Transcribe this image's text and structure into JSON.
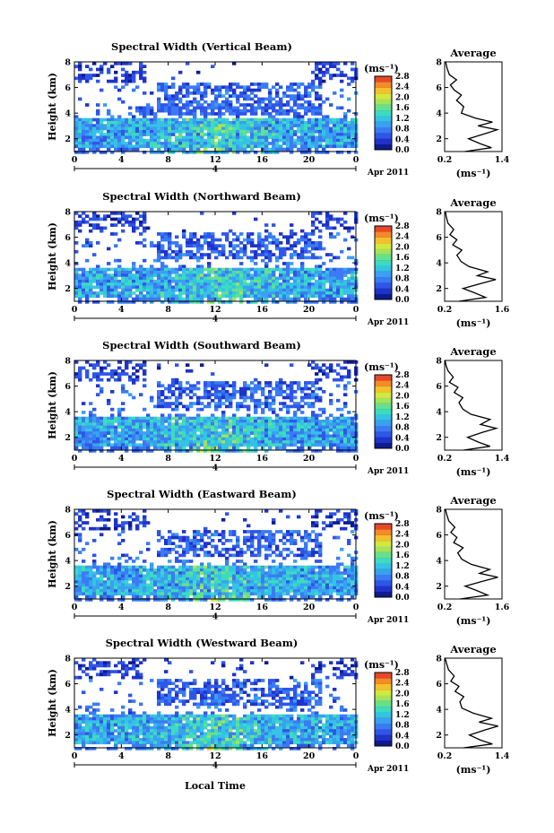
{
  "figure": {
    "x_axis_label": "Local Time",
    "colorbar_unit": "(ms⁻¹)",
    "average_title": "Average",
    "average_unit": "(ms⁻¹)",
    "date_day": "4",
    "date_month_year": "Apr 2011",
    "colormap": [
      "#0d1b8f",
      "#1f33c9",
      "#2e56e8",
      "#3a7bf3",
      "#3aa0f0",
      "#34c3e4",
      "#3ddbbf",
      "#67e08c",
      "#a2e45c",
      "#d8e63c",
      "#f3c12d",
      "#f38b27",
      "#e6482a"
    ]
  },
  "chart_data": [
    {
      "type": "heatmap",
      "title": "Spectral Width (Vertical Beam)",
      "ylabel": "Height (km)",
      "x_ticks": [
        "0",
        "4",
        "8",
        "12",
        "16",
        "20",
        "0"
      ],
      "y_ticks": [
        "2",
        "4",
        "6",
        "8"
      ],
      "xlim": [
        0,
        24
      ],
      "ylim": [
        1,
        8
      ],
      "colorbar_ticks": [
        "0.0",
        "0.4",
        "0.8",
        "1.2",
        "1.6",
        "2.0",
        "2.4",
        "2.8"
      ],
      "colorbar_range": [
        0,
        2.8
      ],
      "average_profile": {
        "x_ticks": [
          "0.2",
          "1.4"
        ],
        "xlim": [
          0.2,
          1.4
        ],
        "y_ticks": [
          "2",
          "4",
          "6",
          "8"
        ],
        "ylim": [
          1,
          8
        ],
        "points": [
          [
            0.62,
            1.0
          ],
          [
            1.18,
            1.3
          ],
          [
            0.95,
            1.6
          ],
          [
            0.7,
            2.0
          ],
          [
            1.05,
            2.4
          ],
          [
            1.3,
            2.7
          ],
          [
            0.9,
            3.0
          ],
          [
            1.2,
            3.3
          ],
          [
            0.85,
            3.6
          ],
          [
            0.55,
            4.0
          ],
          [
            0.6,
            4.5
          ],
          [
            0.45,
            5.0
          ],
          [
            0.55,
            5.4
          ],
          [
            0.4,
            5.8
          ],
          [
            0.32,
            6.2
          ],
          [
            0.45,
            6.6
          ],
          [
            0.3,
            7.0
          ],
          [
            0.25,
            7.5
          ],
          [
            0.22,
            8.0
          ]
        ]
      }
    },
    {
      "type": "heatmap",
      "title": "Spectral Width (Northward Beam)",
      "ylabel": "Height (km)",
      "x_ticks": [
        "0",
        "4",
        "8",
        "12",
        "16",
        "20",
        "0"
      ],
      "y_ticks": [
        "2",
        "4",
        "6",
        "8"
      ],
      "xlim": [
        0,
        24
      ],
      "ylim": [
        1,
        8
      ],
      "colorbar_ticks": [
        "0.0",
        "0.4",
        "0.8",
        "1.2",
        "1.6",
        "2.0",
        "2.4",
        "2.8"
      ],
      "colorbar_range": [
        0,
        2.8
      ],
      "average_profile": {
        "x_ticks": [
          "0.2",
          "1.6"
        ],
        "xlim": [
          0.2,
          1.6
        ],
        "y_ticks": [
          "2",
          "4",
          "6",
          "8"
        ],
        "ylim": [
          1,
          8
        ],
        "points": [
          [
            0.55,
            1.0
          ],
          [
            1.2,
            1.3
          ],
          [
            0.9,
            1.7
          ],
          [
            0.65,
            2.0
          ],
          [
            1.1,
            2.4
          ],
          [
            1.45,
            2.7
          ],
          [
            1.0,
            3.0
          ],
          [
            1.25,
            3.3
          ],
          [
            0.8,
            3.7
          ],
          [
            0.6,
            4.1
          ],
          [
            0.5,
            4.6
          ],
          [
            0.62,
            5.0
          ],
          [
            0.4,
            5.4
          ],
          [
            0.5,
            5.8
          ],
          [
            0.33,
            6.2
          ],
          [
            0.42,
            6.6
          ],
          [
            0.28,
            7.1
          ],
          [
            0.24,
            7.6
          ],
          [
            0.22,
            8.0
          ]
        ]
      }
    },
    {
      "type": "heatmap",
      "title": "Spectral Width (Southward Beam)",
      "ylabel": "Height (km)",
      "x_ticks": [
        "0",
        "4",
        "8",
        "12",
        "16",
        "20",
        "0"
      ],
      "y_ticks": [
        "2",
        "4",
        "6",
        "8"
      ],
      "xlim": [
        0,
        24
      ],
      "ylim": [
        1,
        8
      ],
      "colorbar_ticks": [
        "0.0",
        "0.4",
        "0.8",
        "1.2",
        "1.6",
        "2.0",
        "2.4",
        "2.8"
      ],
      "colorbar_range": [
        0,
        2.8
      ],
      "average_profile": {
        "x_ticks": [
          "0.2",
          "1.4"
        ],
        "xlim": [
          0.2,
          1.4
        ],
        "y_ticks": [
          "2",
          "4",
          "6",
          "8"
        ],
        "ylim": [
          1,
          8
        ],
        "points": [
          [
            0.6,
            1.0
          ],
          [
            1.15,
            1.3
          ],
          [
            0.92,
            1.6
          ],
          [
            0.68,
            2.0
          ],
          [
            1.0,
            2.4
          ],
          [
            1.28,
            2.7
          ],
          [
            0.95,
            3.0
          ],
          [
            1.15,
            3.4
          ],
          [
            0.75,
            3.8
          ],
          [
            0.58,
            4.2
          ],
          [
            0.5,
            4.7
          ],
          [
            0.58,
            5.1
          ],
          [
            0.4,
            5.5
          ],
          [
            0.48,
            5.9
          ],
          [
            0.3,
            6.3
          ],
          [
            0.38,
            6.7
          ],
          [
            0.27,
            7.2
          ],
          [
            0.23,
            7.6
          ],
          [
            0.21,
            8.0
          ]
        ]
      }
    },
    {
      "type": "heatmap",
      "title": "Spectral Width (Eastward Beam)",
      "ylabel": "Height (km)",
      "x_ticks": [
        "0",
        "4",
        "8",
        "12",
        "16",
        "20",
        "0"
      ],
      "y_ticks": [
        "2",
        "4",
        "6",
        "8"
      ],
      "xlim": [
        0,
        24
      ],
      "ylim": [
        1,
        8
      ],
      "colorbar_ticks": [
        "0.0",
        "0.4",
        "0.8",
        "1.2",
        "1.6",
        "2.0",
        "2.4",
        "2.8"
      ],
      "colorbar_range": [
        0,
        2.8
      ],
      "average_profile": {
        "x_ticks": [
          "0.2",
          "1.6"
        ],
        "xlim": [
          0.2,
          1.6
        ],
        "y_ticks": [
          "2",
          "4",
          "6",
          "8"
        ],
        "ylim": [
          1,
          8
        ],
        "points": [
          [
            0.58,
            1.0
          ],
          [
            1.25,
            1.3
          ],
          [
            0.95,
            1.7
          ],
          [
            0.7,
            2.0
          ],
          [
            1.15,
            2.4
          ],
          [
            1.5,
            2.7
          ],
          [
            1.05,
            3.0
          ],
          [
            1.3,
            3.3
          ],
          [
            0.85,
            3.7
          ],
          [
            0.62,
            4.1
          ],
          [
            0.52,
            4.6
          ],
          [
            0.65,
            5.0
          ],
          [
            0.42,
            5.4
          ],
          [
            0.5,
            5.8
          ],
          [
            0.35,
            6.2
          ],
          [
            0.45,
            6.6
          ],
          [
            0.3,
            7.1
          ],
          [
            0.25,
            7.6
          ],
          [
            0.22,
            8.0
          ]
        ]
      }
    },
    {
      "type": "heatmap",
      "title": "Spectral Width (Westward Beam)",
      "ylabel": "Height (km)",
      "x_ticks": [
        "0",
        "4",
        "8",
        "12",
        "16",
        "20",
        "0"
      ],
      "y_ticks": [
        "2",
        "4",
        "6",
        "8"
      ],
      "xlim": [
        0,
        24
      ],
      "ylim": [
        1,
        8
      ],
      "colorbar_ticks": [
        "0.0",
        "0.4",
        "0.8",
        "1.2",
        "1.6",
        "2.0",
        "2.4",
        "2.8"
      ],
      "colorbar_range": [
        0,
        2.8
      ],
      "average_profile": {
        "x_ticks": [
          "0.2",
          "1.4"
        ],
        "xlim": [
          0.2,
          1.4
        ],
        "y_ticks": [
          "2",
          "4",
          "6",
          "8"
        ],
        "ylim": [
          1,
          8
        ],
        "points": [
          [
            0.6,
            1.0
          ],
          [
            1.2,
            1.3
          ],
          [
            0.95,
            1.6
          ],
          [
            0.72,
            2.0
          ],
          [
            1.05,
            2.4
          ],
          [
            1.32,
            2.7
          ],
          [
            0.92,
            3.0
          ],
          [
            1.18,
            3.3
          ],
          [
            0.8,
            3.7
          ],
          [
            0.56,
            4.1
          ],
          [
            0.52,
            4.6
          ],
          [
            0.6,
            5.0
          ],
          [
            0.42,
            5.4
          ],
          [
            0.5,
            5.8
          ],
          [
            0.33,
            6.2
          ],
          [
            0.4,
            6.6
          ],
          [
            0.28,
            7.1
          ],
          [
            0.24,
            7.6
          ],
          [
            0.21,
            8.0
          ]
        ]
      }
    }
  ]
}
